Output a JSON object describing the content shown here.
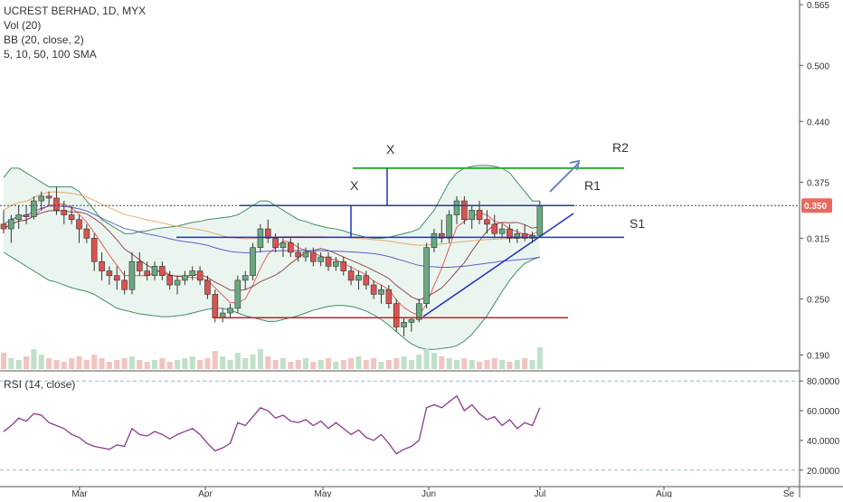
{
  "header": {
    "title": "UCREST BERHAD, 1D, MYX",
    "studies": [
      "Vol (20)",
      "BB (20, close, 2)",
      "5, 10, 50, 100 SMA"
    ]
  },
  "rsi_panel": {
    "label": "RSI (14, close)"
  },
  "colors": {
    "up": "#6aa97f",
    "down": "#d9534f",
    "bb": "#3f8f5f",
    "bb_fill": "#e6f2ec",
    "support": "#2030c8",
    "resistance_green": "#2db035",
    "red_line": "#c82020",
    "arrow": "#6a86b8",
    "rsi": "#8a3a8a",
    "price_badge": "#e86a5e"
  },
  "chart_data": [
    {
      "type": "candlestick",
      "title": "UCREST BERHAD, 1D, MYX",
      "x_ticks": [
        "Mar",
        "Apr",
        "May",
        "Jun",
        "Jul",
        "Aug",
        "Se"
      ],
      "y_ticks": [
        "0.565",
        "0.500",
        "0.440",
        "0.375",
        "0.315",
        "0.250",
        "0.190"
      ],
      "ylim": [
        0.175,
        0.57
      ],
      "last_price": "0.350",
      "annotations": {
        "labels": [
          "X",
          "X",
          "R2",
          "R1",
          "S1"
        ],
        "horizontal_lines": [
          {
            "name": "R2",
            "value": 0.39
          },
          {
            "name": "R1",
            "value": 0.35
          },
          {
            "name": "S1",
            "value": 0.316
          },
          {
            "name": "low-line",
            "value": 0.23
          }
        ]
      },
      "candles": [
        [
          0.33,
          0.345,
          0.32,
          0.325
        ],
        [
          0.325,
          0.34,
          0.31,
          0.335
        ],
        [
          0.335,
          0.35,
          0.325,
          0.34
        ],
        [
          0.34,
          0.35,
          0.33,
          0.338
        ],
        [
          0.338,
          0.36,
          0.335,
          0.355
        ],
        [
          0.355,
          0.365,
          0.345,
          0.36
        ],
        [
          0.36,
          0.365,
          0.35,
          0.358
        ],
        [
          0.358,
          0.37,
          0.34,
          0.345
        ],
        [
          0.345,
          0.355,
          0.33,
          0.34
        ],
        [
          0.34,
          0.35,
          0.33,
          0.335
        ],
        [
          0.335,
          0.34,
          0.31,
          0.325
        ],
        [
          0.325,
          0.33,
          0.31,
          0.315
        ],
        [
          0.315,
          0.32,
          0.28,
          0.29
        ],
        [
          0.29,
          0.3,
          0.27,
          0.28
        ],
        [
          0.28,
          0.285,
          0.265,
          0.275
        ],
        [
          0.275,
          0.285,
          0.26,
          0.27
        ],
        [
          0.27,
          0.28,
          0.255,
          0.26
        ],
        [
          0.26,
          0.3,
          0.255,
          0.29
        ],
        [
          0.29,
          0.3,
          0.275,
          0.28
        ],
        [
          0.28,
          0.29,
          0.27,
          0.275
        ],
        [
          0.275,
          0.29,
          0.27,
          0.285
        ],
        [
          0.285,
          0.29,
          0.27,
          0.275
        ],
        [
          0.275,
          0.28,
          0.26,
          0.265
        ],
        [
          0.265,
          0.275,
          0.255,
          0.27
        ],
        [
          0.27,
          0.28,
          0.265,
          0.275
        ],
        [
          0.275,
          0.285,
          0.27,
          0.28
        ],
        [
          0.28,
          0.285,
          0.265,
          0.27
        ],
        [
          0.27,
          0.275,
          0.25,
          0.255
        ],
        [
          0.255,
          0.26,
          0.225,
          0.23
        ],
        [
          0.23,
          0.24,
          0.225,
          0.235
        ],
        [
          0.235,
          0.245,
          0.23,
          0.24
        ],
        [
          0.24,
          0.275,
          0.235,
          0.27
        ],
        [
          0.27,
          0.28,
          0.26,
          0.275
        ],
        [
          0.275,
          0.31,
          0.27,
          0.305
        ],
        [
          0.305,
          0.33,
          0.3,
          0.325
        ],
        [
          0.325,
          0.335,
          0.31,
          0.315
        ],
        [
          0.315,
          0.32,
          0.3,
          0.305
        ],
        [
          0.305,
          0.315,
          0.295,
          0.31
        ],
        [
          0.31,
          0.315,
          0.295,
          0.3
        ],
        [
          0.3,
          0.31,
          0.29,
          0.295
        ],
        [
          0.295,
          0.305,
          0.29,
          0.3
        ],
        [
          0.3,
          0.305,
          0.285,
          0.29
        ],
        [
          0.29,
          0.3,
          0.285,
          0.295
        ],
        [
          0.295,
          0.3,
          0.28,
          0.285
        ],
        [
          0.285,
          0.295,
          0.28,
          0.29
        ],
        [
          0.29,
          0.295,
          0.275,
          0.28
        ],
        [
          0.28,
          0.285,
          0.265,
          0.27
        ],
        [
          0.27,
          0.28,
          0.26,
          0.275
        ],
        [
          0.275,
          0.28,
          0.26,
          0.265
        ],
        [
          0.265,
          0.27,
          0.25,
          0.255
        ],
        [
          0.255,
          0.265,
          0.245,
          0.26
        ],
        [
          0.26,
          0.265,
          0.24,
          0.245
        ],
        [
          0.245,
          0.25,
          0.215,
          0.22
        ],
        [
          0.22,
          0.23,
          0.21,
          0.225
        ],
        [
          0.225,
          0.23,
          0.215,
          0.228
        ],
        [
          0.228,
          0.25,
          0.225,
          0.245
        ],
        [
          0.245,
          0.31,
          0.24,
          0.305
        ],
        [
          0.305,
          0.325,
          0.3,
          0.32
        ],
        [
          0.32,
          0.335,
          0.31,
          0.315
        ],
        [
          0.315,
          0.345,
          0.31,
          0.34
        ],
        [
          0.34,
          0.36,
          0.33,
          0.355
        ],
        [
          0.355,
          0.36,
          0.33,
          0.335
        ],
        [
          0.335,
          0.35,
          0.325,
          0.345
        ],
        [
          0.345,
          0.355,
          0.33,
          0.335
        ],
        [
          0.335,
          0.345,
          0.32,
          0.33
        ],
        [
          0.33,
          0.34,
          0.315,
          0.32
        ],
        [
          0.32,
          0.33,
          0.315,
          0.325
        ],
        [
          0.325,
          0.33,
          0.31,
          0.315
        ],
        [
          0.315,
          0.325,
          0.31,
          0.32
        ],
        [
          0.32,
          0.33,
          0.312,
          0.315
        ],
        [
          0.315,
          0.322,
          0.31,
          0.318
        ],
        [
          0.318,
          0.355,
          0.316,
          0.35
        ]
      ],
      "bb_upper": [
        0.38,
        0.39,
        0.39,
        0.385,
        0.38,
        0.375,
        0.37,
        0.37,
        0.37,
        0.37,
        0.365,
        0.355,
        0.345,
        0.335,
        0.33,
        0.325,
        0.32,
        0.32,
        0.322,
        0.323,
        0.325,
        0.326,
        0.327,
        0.328,
        0.33,
        0.332,
        0.333,
        0.335,
        0.336,
        0.337,
        0.338,
        0.34,
        0.345,
        0.35,
        0.355,
        0.355,
        0.35,
        0.345,
        0.34,
        0.335,
        0.333,
        0.33,
        0.328,
        0.326,
        0.325,
        0.323,
        0.32,
        0.318,
        0.316,
        0.315,
        0.315,
        0.316,
        0.318,
        0.32,
        0.322,
        0.325,
        0.335,
        0.345,
        0.36,
        0.375,
        0.385,
        0.39,
        0.392,
        0.393,
        0.393,
        0.392,
        0.39,
        0.385,
        0.375,
        0.365,
        0.355,
        0.355
      ],
      "bb_lower": [
        0.3,
        0.295,
        0.29,
        0.285,
        0.28,
        0.275,
        0.27,
        0.268,
        0.265,
        0.262,
        0.26,
        0.258,
        0.255,
        0.25,
        0.245,
        0.24,
        0.238,
        0.236,
        0.234,
        0.233,
        0.232,
        0.231,
        0.231,
        0.232,
        0.233,
        0.235,
        0.237,
        0.239,
        0.24,
        0.24,
        0.238,
        0.235,
        0.232,
        0.23,
        0.228,
        0.226,
        0.226,
        0.228,
        0.23,
        0.232,
        0.235,
        0.238,
        0.24,
        0.242,
        0.243,
        0.243,
        0.242,
        0.24,
        0.237,
        0.233,
        0.228,
        0.222,
        0.215,
        0.208,
        0.202,
        0.198,
        0.196,
        0.196,
        0.197,
        0.198,
        0.2,
        0.205,
        0.212,
        0.222,
        0.232,
        0.245,
        0.258,
        0.27,
        0.28,
        0.288,
        0.292,
        0.295
      ],
      "volume": [
        18,
        12,
        10,
        14,
        22,
        16,
        12,
        10,
        8,
        12,
        14,
        10,
        16,
        12,
        8,
        10,
        12,
        14,
        10,
        8,
        10,
        12,
        8,
        10,
        12,
        14,
        10,
        12,
        20,
        14,
        10,
        18,
        12,
        16,
        22,
        14,
        10,
        12,
        8,
        10,
        12,
        8,
        10,
        12,
        8,
        10,
        12,
        14,
        10,
        12,
        8,
        10,
        12,
        14,
        10,
        16,
        22,
        18,
        14,
        12,
        10,
        12,
        10,
        8,
        10,
        12,
        10,
        8,
        10,
        12,
        10,
        24
      ],
      "rsi": [
        46,
        50,
        55,
        53,
        58,
        57,
        52,
        50,
        48,
        44,
        42,
        38,
        36,
        35,
        34,
        37,
        36,
        48,
        44,
        43,
        46,
        44,
        41,
        44,
        46,
        48,
        44,
        38,
        33,
        35,
        38,
        52,
        50,
        56,
        62,
        60,
        55,
        57,
        53,
        52,
        54,
        50,
        53,
        48,
        52,
        48,
        44,
        47,
        42,
        40,
        44,
        38,
        31,
        34,
        36,
        40,
        62,
        64,
        62,
        66,
        70,
        60,
        64,
        58,
        54,
        56,
        50,
        54,
        48,
        52,
        50,
        62
      ]
    },
    {
      "type": "line",
      "title": "RSI (14, close)",
      "y_ticks": [
        "80.0000",
        "60.0000",
        "40.0000",
        "20.0000"
      ],
      "ylim": [
        15,
        85
      ]
    }
  ]
}
